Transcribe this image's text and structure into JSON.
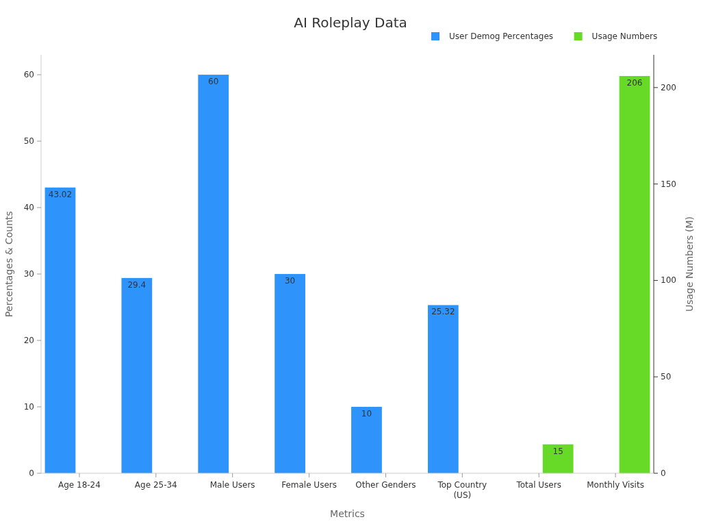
{
  "chart_data": {
    "type": "bar",
    "title": "AI Roleplay Data",
    "xlabel": "Metrics",
    "ylabel": "Percentages & Counts",
    "y2label": "Usage Numbers (M)",
    "categories": [
      "Age 18-24",
      "Age 25-34",
      "Male Users",
      "Female Users",
      "Other Genders",
      "Top Country (US)",
      "Total Users",
      "Monthly Visits"
    ],
    "series": [
      {
        "name": "User Demog Percentages",
        "color": "#2e93fa",
        "values": [
          43.02,
          29.4,
          60,
          30,
          10,
          25.32,
          null,
          null
        ]
      },
      {
        "name": "Usage Numbers",
        "color": "#66da26",
        "axis": "y2",
        "values": [
          null,
          null,
          null,
          null,
          null,
          null,
          15,
          206
        ]
      }
    ],
    "ylim": [
      0,
      63
    ],
    "yticks": [
      0,
      10,
      20,
      30,
      40,
      50,
      60
    ],
    "y2lim": [
      0,
      217
    ],
    "y2ticks": [
      0,
      50,
      100,
      150,
      200
    ],
    "data_labels": true,
    "legend": "top right",
    "grid": false
  }
}
